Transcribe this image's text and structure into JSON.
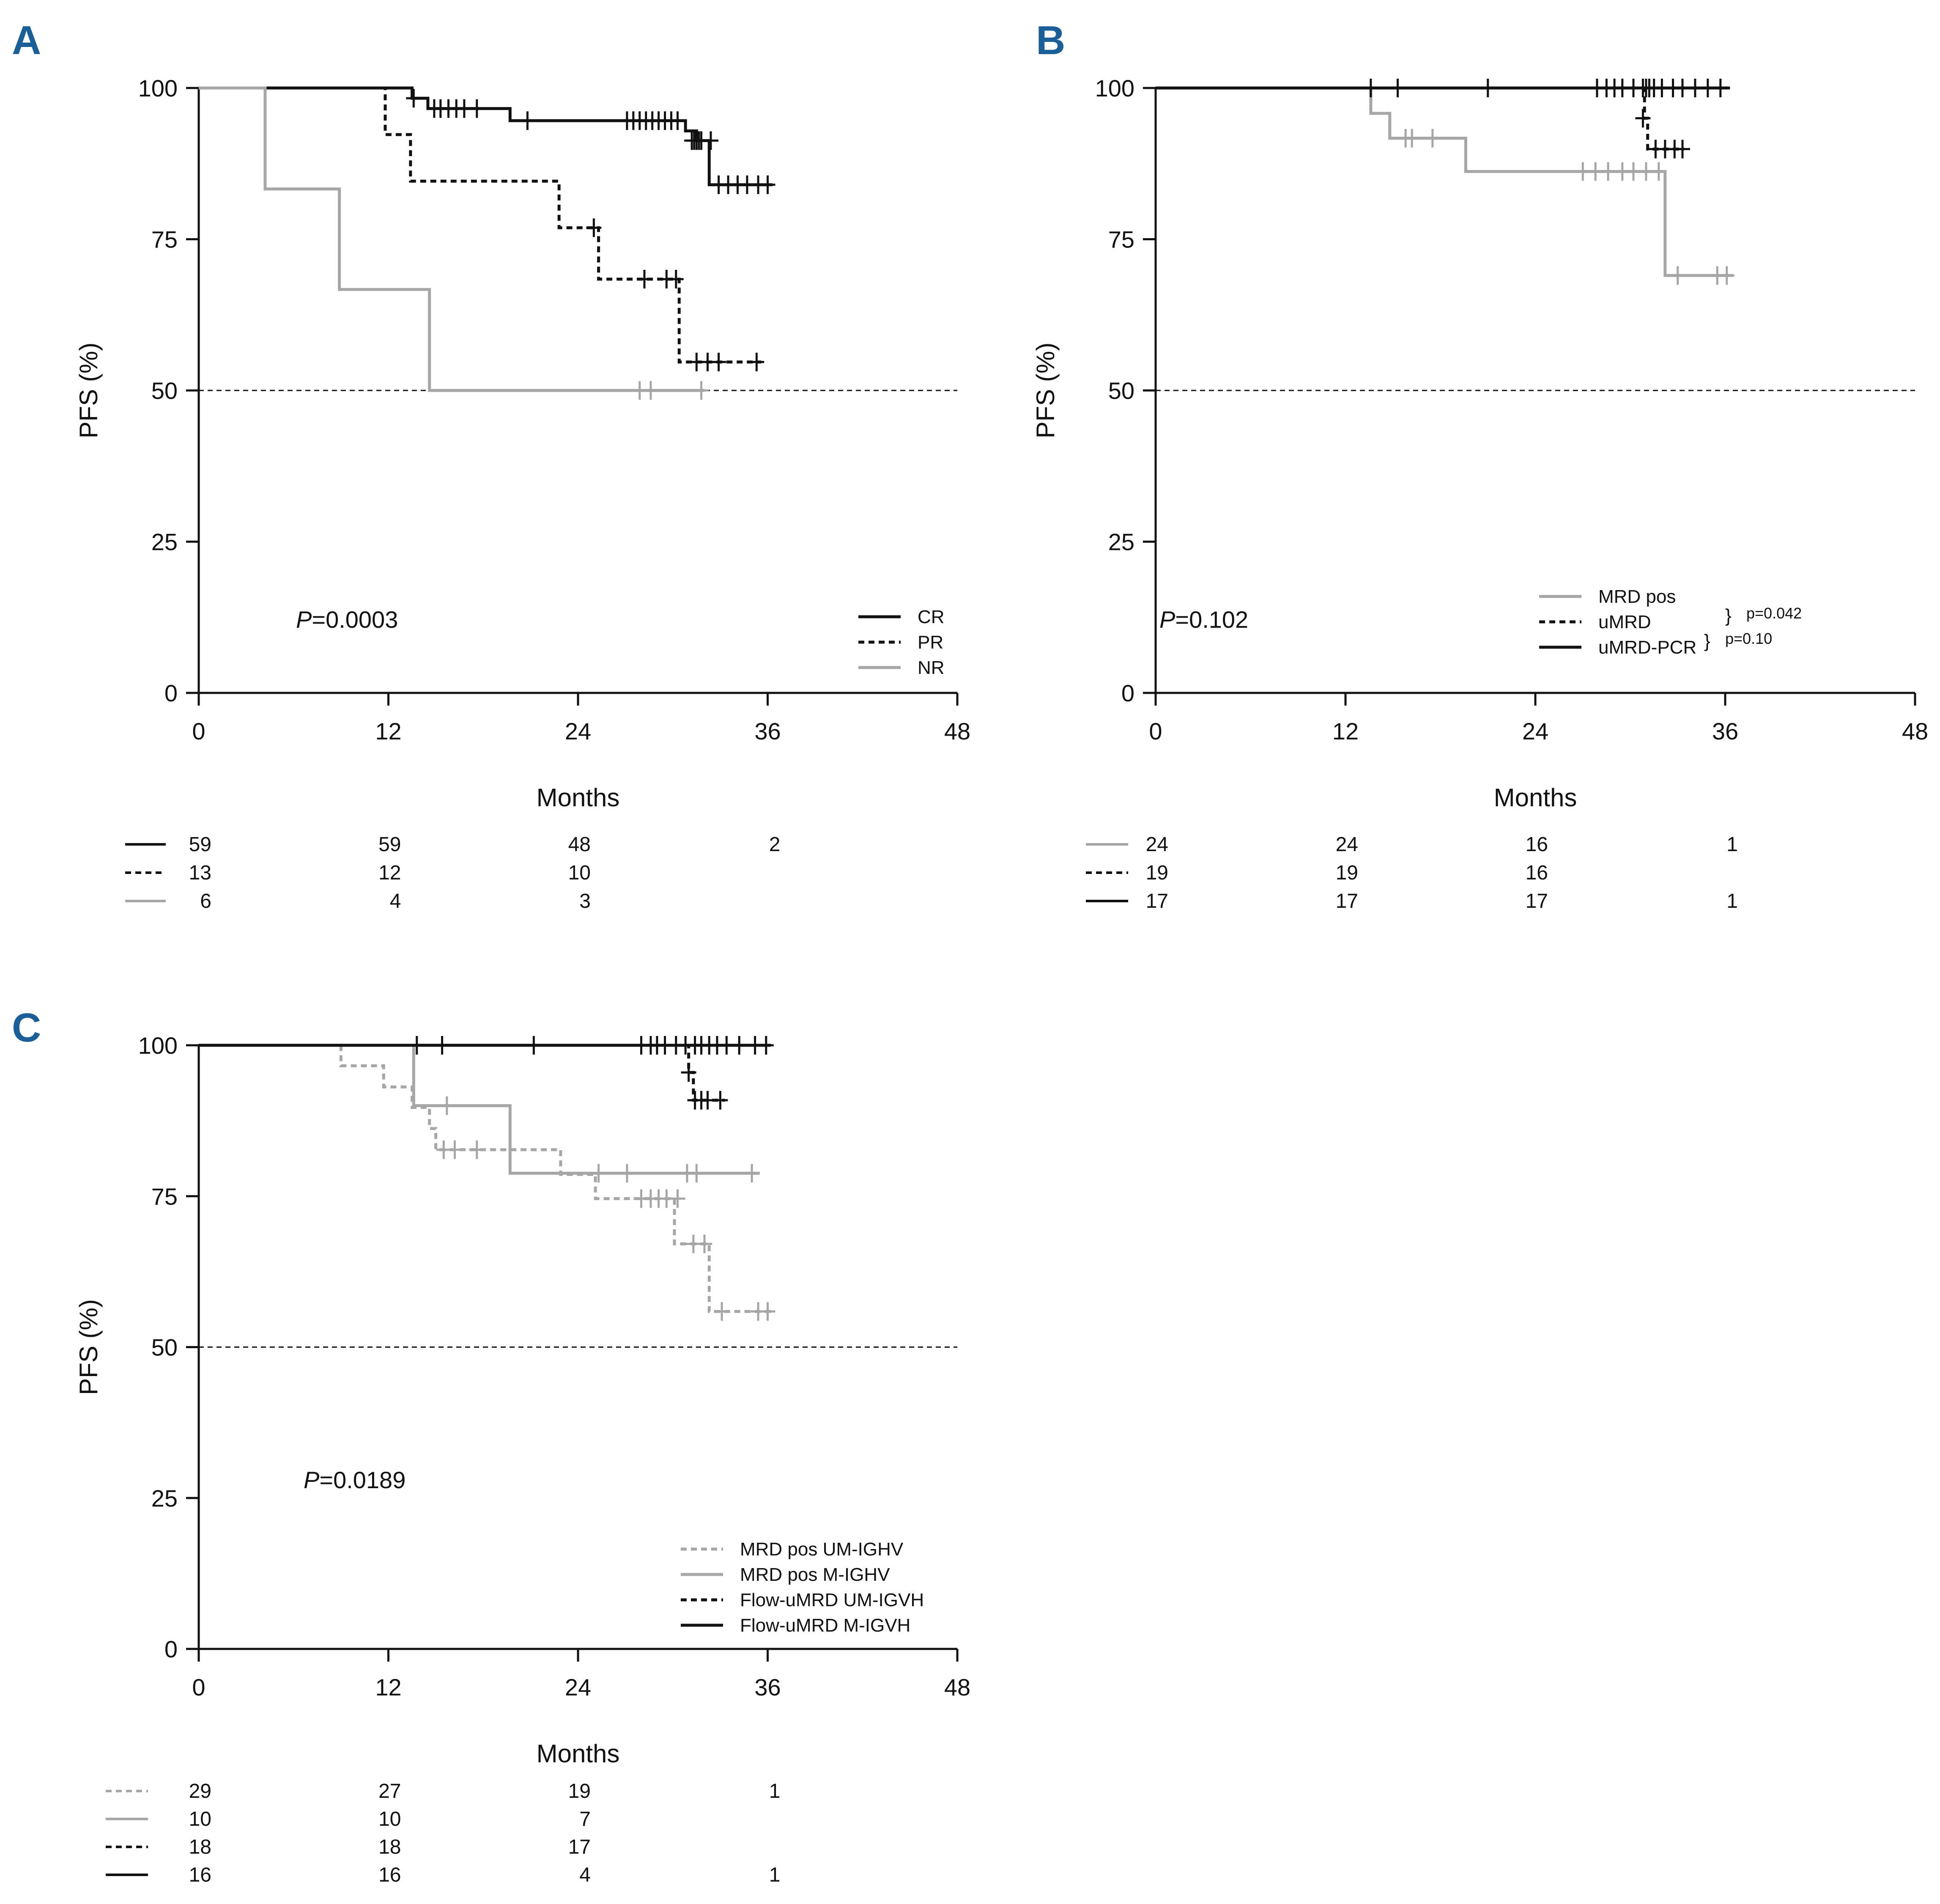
{
  "figure": {
    "background": "#ffffff",
    "panel_letter_color": "#1a5f98"
  },
  "styles": {
    "solid_black": {
      "color": "#111111",
      "dash": "none"
    },
    "dotted_black": {
      "color": "#111111",
      "dash": "short"
    },
    "solid_gray": {
      "color": "#a6a6a6",
      "dash": "none"
    },
    "dotted_gray": {
      "color": "#a6a6a6",
      "dash": "short"
    }
  },
  "chart_data": [
    {
      "id": "A",
      "type": "line",
      "panel_label": "A",
      "xlabel": "Months",
      "ylabel": "PFS (%)",
      "xticks": [
        0,
        12,
        24,
        36,
        48
      ],
      "yticks": [
        0,
        25,
        50,
        75,
        100
      ],
      "xlim": [
        0,
        48
      ],
      "ylim": [
        0,
        100
      ],
      "reference_line": 50,
      "pvalue": {
        "prefix": "P",
        "text": "=0.0003"
      },
      "legend_position": "bottom-right",
      "series": [
        {
          "name": "CR",
          "style": "solid_black",
          "steps": [
            [
              0,
              100
            ],
            [
              13.5,
              98.3
            ],
            [
              14.5,
              96.6
            ],
            [
              19.7,
              94.6
            ],
            [
              30.8,
              92.9
            ],
            [
              31.5,
              91.3
            ],
            [
              32.3,
              84.0
            ],
            [
              36.3,
              84.0
            ]
          ],
          "censors": [
            [
              13.6,
              98.3
            ],
            [
              14.9,
              96.6
            ],
            [
              15.3,
              96.6
            ],
            [
              15.8,
              96.6
            ],
            [
              16.3,
              96.6
            ],
            [
              16.8,
              96.6
            ],
            [
              17.6,
              96.6
            ],
            [
              20.8,
              94.6
            ],
            [
              27.1,
              94.6
            ],
            [
              27.5,
              94.6
            ],
            [
              27.9,
              94.6
            ],
            [
              28.3,
              94.6
            ],
            [
              28.7,
              94.6
            ],
            [
              29.1,
              94.6
            ],
            [
              29.5,
              94.6
            ],
            [
              29.9,
              94.6
            ],
            [
              30.3,
              94.6
            ],
            [
              31.2,
              91.3
            ],
            [
              31.35,
              91.3
            ],
            [
              31.5,
              91.3
            ],
            [
              31.65,
              91.3
            ],
            [
              31.8,
              91.3
            ],
            [
              32.4,
              91.3
            ],
            [
              32.9,
              84.0
            ],
            [
              33.5,
              84.0
            ],
            [
              34.1,
              84.0
            ],
            [
              34.7,
              84.0
            ],
            [
              35.4,
              84.0
            ],
            [
              36.0,
              84.0
            ]
          ]
        },
        {
          "name": "PR",
          "style": "dotted_black",
          "steps": [
            [
              0,
              100
            ],
            [
              11.8,
              92.3
            ],
            [
              13.4,
              84.6
            ],
            [
              22.8,
              76.9
            ],
            [
              25.3,
              68.4
            ],
            [
              30.4,
              54.7
            ],
            [
              35.6,
              54.7
            ]
          ],
          "censors": [
            [
              25.0,
              76.9
            ],
            [
              28.2,
              68.4
            ],
            [
              29.6,
              68.4
            ],
            [
              30.2,
              68.4
            ],
            [
              31.5,
              54.7
            ],
            [
              32.2,
              54.7
            ],
            [
              32.9,
              54.7
            ],
            [
              35.3,
              54.7
            ]
          ]
        },
        {
          "name": "NR",
          "style": "solid_gray",
          "steps": [
            [
              0,
              100
            ],
            [
              4.2,
              83.3
            ],
            [
              8.9,
              66.7
            ],
            [
              14.6,
              50.0
            ],
            [
              32.0,
              50.0
            ]
          ],
          "censors": [
            [
              27.9,
              50.0
            ],
            [
              28.6,
              50.0
            ],
            [
              31.8,
              50.0
            ]
          ]
        }
      ],
      "risk_table": {
        "times": [
          0,
          12,
          24,
          36
        ],
        "rows": [
          {
            "style": "solid_black",
            "values": [
              "59",
              "59",
              "48",
              "2"
            ]
          },
          {
            "style": "dotted_black",
            "values": [
              "13",
              "12",
              "10",
              ""
            ]
          },
          {
            "style": "solid_gray",
            "values": [
              "6",
              "4",
              "3",
              ""
            ]
          }
        ]
      }
    },
    {
      "id": "B",
      "type": "line",
      "panel_label": "B",
      "xlabel": "Months",
      "ylabel": "PFS (%)",
      "xticks": [
        0,
        12,
        24,
        36,
        48
      ],
      "yticks": [
        0,
        25,
        50,
        75,
        100
      ],
      "xlim": [
        0,
        48
      ],
      "ylim": [
        0,
        100
      ],
      "reference_line": 50,
      "pvalue": {
        "prefix": "P",
        "text": "=0.102"
      },
      "legend_position": "bottom-right",
      "pairwise": [
        {
          "text": "p=0.042",
          "between": [
            "MRD pos",
            "uMRD"
          ]
        },
        {
          "text": "p=0.10",
          "between": [
            "uMRD",
            "uMRD-PCR"
          ]
        }
      ],
      "series": [
        {
          "name": "MRD pos",
          "style": "solid_gray",
          "steps": [
            [
              0,
              100
            ],
            [
              13.6,
              95.8
            ],
            [
              14.8,
              91.7
            ],
            [
              19.6,
              86.2
            ],
            [
              32.2,
              69.0
            ],
            [
              36.5,
              69.0
            ]
          ],
          "censors": [
            [
              15.8,
              91.7
            ],
            [
              16.2,
              91.7
            ],
            [
              17.5,
              91.7
            ],
            [
              27.0,
              86.2
            ],
            [
              27.8,
              86.2
            ],
            [
              28.6,
              86.2
            ],
            [
              29.5,
              86.2
            ],
            [
              30.2,
              86.2
            ],
            [
              31.0,
              86.2
            ],
            [
              31.8,
              86.2
            ],
            [
              33.0,
              69.0
            ],
            [
              35.5,
              69.0
            ],
            [
              36.1,
              69.0
            ]
          ]
        },
        {
          "name": "uMRD",
          "style": "dotted_black",
          "steps": [
            [
              0,
              100
            ],
            [
              30.9,
              95.0
            ],
            [
              31.1,
              89.9
            ],
            [
              33.4,
              89.9
            ]
          ],
          "censors": [
            [
              30.8,
              95.0
            ],
            [
              31.6,
              89.9
            ],
            [
              32.2,
              89.9
            ],
            [
              32.8,
              89.9
            ],
            [
              33.3,
              89.9
            ]
          ]
        },
        {
          "name": "uMRD-PCR",
          "style": "solid_black",
          "steps": [
            [
              0,
              100
            ],
            [
              36.3,
              100
            ]
          ],
          "censors": [
            [
              13.6,
              100
            ],
            [
              15.3,
              100
            ],
            [
              21.0,
              100
            ],
            [
              27.9,
              100
            ],
            [
              28.5,
              100
            ],
            [
              29.0,
              100
            ],
            [
              29.5,
              100
            ],
            [
              30.2,
              100
            ],
            [
              30.8,
              100
            ],
            [
              31.0,
              100
            ],
            [
              31.2,
              100
            ],
            [
              31.5,
              100
            ],
            [
              32.0,
              100
            ],
            [
              32.7,
              100
            ],
            [
              33.3,
              100
            ],
            [
              34.1,
              100
            ],
            [
              34.9,
              100
            ],
            [
              35.7,
              100
            ]
          ]
        }
      ],
      "risk_table": {
        "times": [
          0,
          12,
          24,
          36
        ],
        "rows": [
          {
            "style": "solid_gray",
            "values": [
              "24",
              "24",
              "16",
              "1"
            ]
          },
          {
            "style": "dotted_black",
            "values": [
              "19",
              "19",
              "16",
              ""
            ]
          },
          {
            "style": "solid_black",
            "values": [
              "17",
              "17",
              "17",
              "1"
            ]
          }
        ]
      }
    },
    {
      "id": "C",
      "type": "line",
      "panel_label": "C",
      "xlabel": "Months",
      "ylabel": "PFS (%)",
      "xticks": [
        0,
        12,
        24,
        36,
        48
      ],
      "yticks": [
        0,
        25,
        50,
        75,
        100
      ],
      "xlim": [
        0,
        48
      ],
      "ylim": [
        0,
        100
      ],
      "reference_line": 50,
      "pvalue": {
        "prefix": "P",
        "text": "=0.0189"
      },
      "legend_position": "bottom-right",
      "series": [
        {
          "name": "MRD pos UM-IGHV",
          "style": "dotted_gray",
          "steps": [
            [
              0,
              100
            ],
            [
              9.0,
              96.6
            ],
            [
              11.7,
              93.1
            ],
            [
              13.5,
              89.7
            ],
            [
              14.6,
              86.2
            ],
            [
              15.0,
              82.7
            ],
            [
              22.9,
              78.6
            ],
            [
              25.1,
              74.6
            ],
            [
              30.1,
              67.1
            ],
            [
              32.3,
              55.9
            ],
            [
              36.3,
              55.9
            ]
          ],
          "censors": [
            [
              15.5,
              82.7
            ],
            [
              16.2,
              82.7
            ],
            [
              17.6,
              82.7
            ],
            [
              28.0,
              74.6
            ],
            [
              28.6,
              74.6
            ],
            [
              29.1,
              74.6
            ],
            [
              29.6,
              74.6
            ],
            [
              30.3,
              74.6
            ],
            [
              31.3,
              67.1
            ],
            [
              32.0,
              67.1
            ],
            [
              33.1,
              55.9
            ],
            [
              35.4,
              55.9
            ],
            [
              36.0,
              55.9
            ]
          ]
        },
        {
          "name": "MRD pos M-IGHV",
          "style": "solid_gray",
          "steps": [
            [
              0,
              100
            ],
            [
              13.6,
              90.0
            ],
            [
              19.7,
              78.8
            ],
            [
              35.5,
              78.8
            ]
          ],
          "censors": [
            [
              15.7,
              90.0
            ],
            [
              25.3,
              78.8
            ],
            [
              27.1,
              78.8
            ],
            [
              30.9,
              78.8
            ],
            [
              31.5,
              78.8
            ],
            [
              35.0,
              78.8
            ]
          ]
        },
        {
          "name": "Flow-uMRD UM-IGVH",
          "style": "dotted_black",
          "steps": [
            [
              0,
              100
            ],
            [
              31.0,
              95.5
            ],
            [
              31.3,
              90.9
            ],
            [
              33.3,
              90.9
            ]
          ],
          "censors": [
            [
              31.0,
              95.5
            ],
            [
              31.4,
              90.9
            ],
            [
              31.8,
              90.9
            ],
            [
              32.2,
              90.9
            ],
            [
              33.0,
              90.9
            ]
          ]
        },
        {
          "name": "Flow-uMRD M-IGVH",
          "style": "solid_black",
          "steps": [
            [
              0,
              100
            ],
            [
              36.2,
              100
            ]
          ],
          "censors": [
            [
              13.8,
              100
            ],
            [
              15.4,
              100
            ],
            [
              21.2,
              100
            ],
            [
              28.0,
              100
            ],
            [
              28.6,
              100
            ],
            [
              29.0,
              100
            ],
            [
              29.5,
              100
            ],
            [
              30.2,
              100
            ],
            [
              30.8,
              100
            ],
            [
              31.4,
              100
            ],
            [
              31.8,
              100
            ],
            [
              32.3,
              100
            ],
            [
              32.8,
              100
            ],
            [
              33.4,
              100
            ],
            [
              34.2,
              100
            ],
            [
              35.2,
              100
            ],
            [
              35.9,
              100
            ]
          ]
        }
      ],
      "risk_table": {
        "times": [
          0,
          12,
          24,
          36
        ],
        "rows": [
          {
            "style": "dotted_gray",
            "values": [
              "29",
              "27",
              "19",
              "1"
            ]
          },
          {
            "style": "solid_gray",
            "values": [
              "10",
              "10",
              "7",
              ""
            ]
          },
          {
            "style": "dotted_black",
            "values": [
              "18",
              "18",
              "17",
              ""
            ]
          },
          {
            "style": "solid_black",
            "values": [
              "16",
              "16",
              "4",
              "1"
            ]
          }
        ]
      }
    }
  ]
}
